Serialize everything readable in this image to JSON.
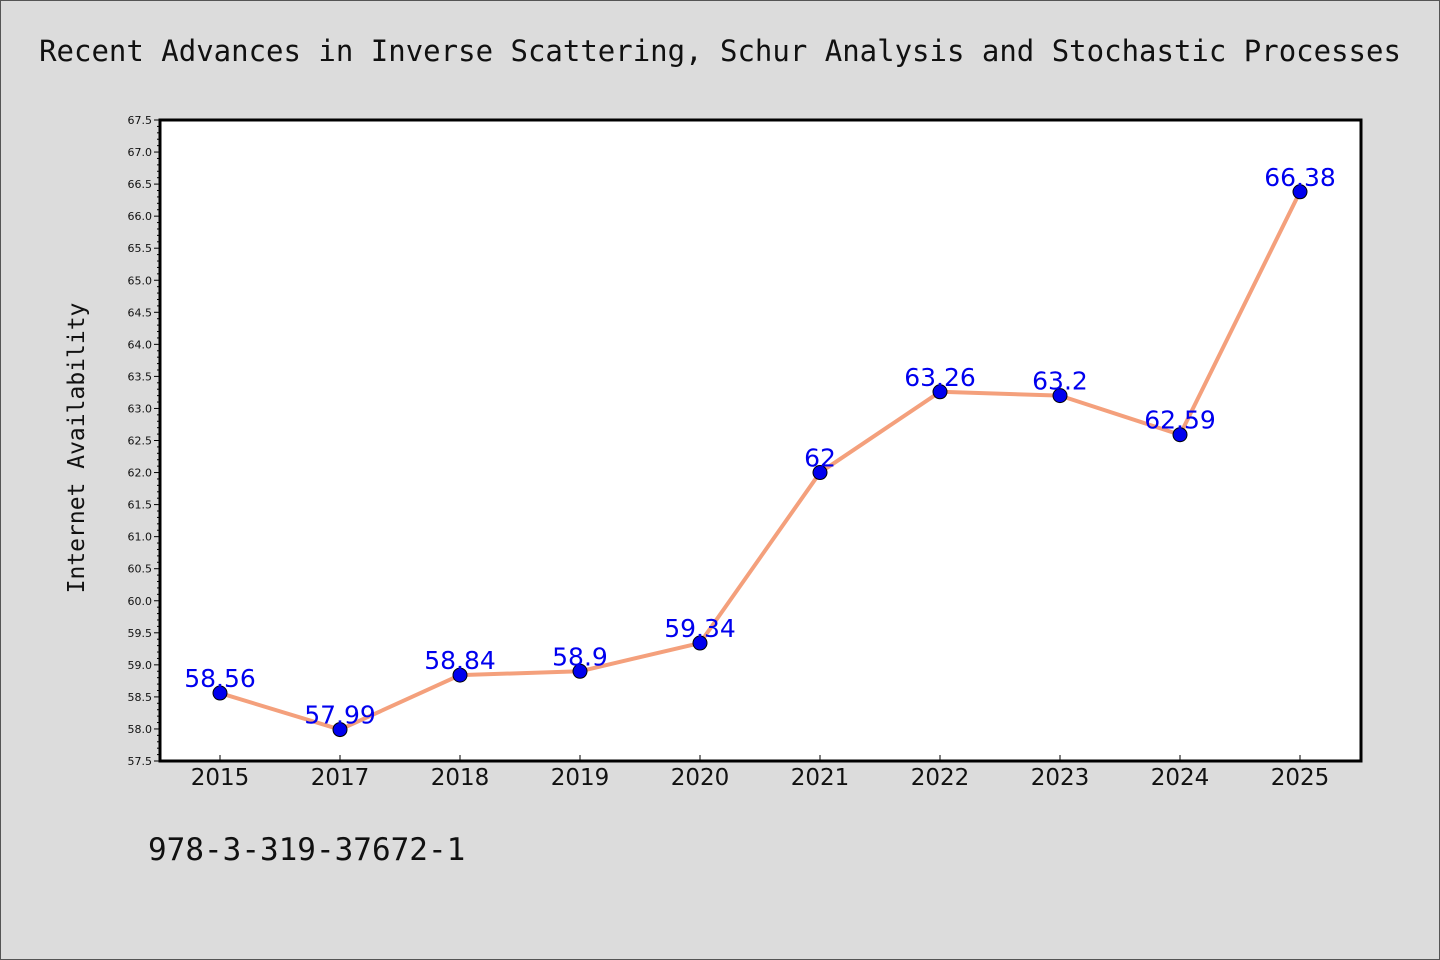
{
  "chart_data": {
    "type": "line",
    "title": "Recent Advances in Inverse Scattering, Schur Analysis and Stochastic Processes",
    "xlabel": "",
    "ylabel": "Internet Availability",
    "categories": [
      "2015",
      "2017",
      "2018",
      "2019",
      "2020",
      "2021",
      "2022",
      "2023",
      "2024",
      "2025"
    ],
    "series": [
      {
        "values": [
          58.56,
          57.99,
          58.84,
          58.9,
          59.34,
          62,
          63.26,
          63.2,
          62.59,
          66.38
        ]
      }
    ],
    "data_labels": [
      "58.56",
      "57.99",
      "58.84",
      "58.9",
      "59.34",
      "62",
      "63.26",
      "63.2",
      "62.59",
      "66.38"
    ],
    "ylim": [
      57.5,
      67.5
    ],
    "yticks": [
      "57.5",
      "58.0",
      "58.5",
      "59.0",
      "59.5",
      "60.0",
      "60.5",
      "61.0",
      "61.5",
      "62.0",
      "62.5",
      "63.0",
      "63.5",
      "64.0",
      "64.5",
      "65.0",
      "65.5",
      "66.0",
      "66.5",
      "67.0",
      "67.5"
    ],
    "grid": false,
    "line_color": "#f4a07c",
    "marker_color": "#0000ee"
  },
  "footer_text": "978-3-319-37672-1"
}
